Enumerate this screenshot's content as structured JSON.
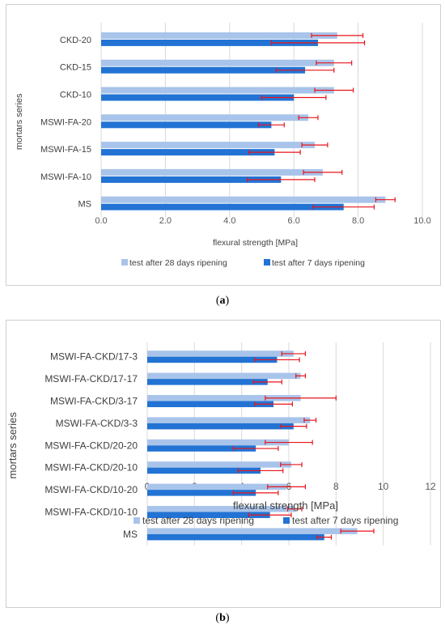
{
  "chart_data": [
    {
      "type": "bar",
      "orientation": "horizontal",
      "panel_label": "a",
      "categories": [
        "CKD-20",
        "CKD-15",
        "CKD-10",
        "MSWI-FA-20",
        "MSWI-FA-15",
        "MSWI-FA-10",
        "MS"
      ],
      "series": [
        {
          "name": "test after 28 days ripening",
          "values": [
            7.35,
            7.25,
            7.25,
            6.45,
            6.65,
            6.9,
            8.85
          ],
          "errors": [
            0.8,
            0.55,
            0.6,
            0.3,
            0.4,
            0.6,
            0.3
          ],
          "color": "#a9c4ea"
        },
        {
          "name": "test after 7 days ripening",
          "values": [
            6.75,
            6.35,
            6.0,
            5.3,
            5.4,
            5.6,
            7.55
          ],
          "errors": [
            1.45,
            0.9,
            1.0,
            0.4,
            0.8,
            1.05,
            0.95
          ],
          "color": "#2273d4"
        }
      ],
      "xlabel": "flexural strength [MPa]",
      "ylabel": "mortars series",
      "xlim": [
        0,
        10
      ],
      "xticks": [
        "0.0",
        "2.0",
        "4.0",
        "6.0",
        "8.0",
        "10.0"
      ],
      "grid": true,
      "legend_position": "bottom"
    },
    {
      "type": "bar",
      "orientation": "horizontal",
      "panel_label": "b",
      "categories": [
        "MSWI-FA-CKD/17-3",
        "MSWI-FA-CKD/17-17",
        "MSWI-FA-CKD/3-17",
        "MSWI-FA-CKD/3-3",
        "MSWI-FA-CKD/20-20",
        "MSWI-FA-CKD/20-10",
        "MSWI-FA-CKD/10-20",
        "MSWI-FA-CKD/10-10",
        "MS"
      ],
      "series": [
        {
          "name": "test after 28 days ripening",
          "values": [
            6.2,
            6.5,
            6.5,
            6.9,
            6.0,
            6.1,
            5.9,
            6.25,
            8.9
          ],
          "errors": [
            0.5,
            0.2,
            1.5,
            0.25,
            1.0,
            0.45,
            0.8,
            0.3,
            0.7
          ],
          "color": "#a9c4ea"
        },
        {
          "name": "test after 7 days ripening",
          "values": [
            5.5,
            5.1,
            5.35,
            6.2,
            4.6,
            4.8,
            4.6,
            5.2,
            7.5
          ],
          "errors": [
            0.95,
            0.6,
            0.8,
            0.55,
            0.95,
            0.95,
            0.95,
            0.9,
            0.3
          ],
          "color": "#2273d4"
        }
      ],
      "xlabel": "flexural strength [MPa]",
      "ylabel": "mortars series",
      "xlim": [
        0,
        12
      ],
      "xticks": [
        "0",
        "2",
        "4",
        "6",
        "8",
        "10",
        "12"
      ],
      "grid": true,
      "legend_position": "bottom"
    }
  ],
  "captions": {
    "a": "a",
    "b": "b"
  },
  "colors": {
    "gridline": "#d9d9d9",
    "error_bar": "#e8141b",
    "axis_text": "#595959"
  }
}
